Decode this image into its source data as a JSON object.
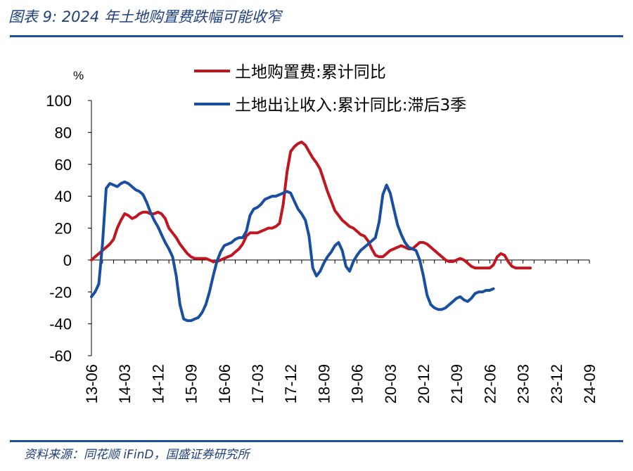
{
  "header": {
    "title": "图表 9:  2024 年土地购置费跌幅可能收窄"
  },
  "footer": {
    "source": "资料来源：同花顺 iFinD，国盛证券研究所"
  },
  "chart_data": {
    "type": "line",
    "ylabel": "%",
    "ylim": [
      -60,
      100
    ],
    "yticks": [
      100,
      80,
      60,
      40,
      20,
      0,
      -20,
      -40,
      -60
    ],
    "xticks": [
      "13-06",
      "14-03",
      "14-12",
      "15-09",
      "16-06",
      "17-03",
      "17-12",
      "18-09",
      "19-06",
      "20-03",
      "20-12",
      "21-09",
      "22-06",
      "23-03",
      "23-12",
      "24-09"
    ],
    "x_start": "2013-06",
    "legend_position": "top-right",
    "grid": false,
    "colors": {
      "land_purchase": "#c0161f",
      "land_revenue": "#1a4ea0",
      "rule": "#1f4e9c"
    },
    "series": [
      {
        "name": "土地购置费:累计同比",
        "color": "#c0161f",
        "points": [
          [
            "2013-06",
            0
          ],
          [
            "2013-07",
            2
          ],
          [
            "2013-08",
            4
          ],
          [
            "2013-09",
            6
          ],
          [
            "2013-10",
            8
          ],
          [
            "2013-11",
            10
          ],
          [
            "2013-12",
            13
          ],
          [
            "2014-01",
            20
          ],
          [
            "2014-02",
            25
          ],
          [
            "2014-03",
            29
          ],
          [
            "2014-04",
            28
          ],
          [
            "2014-05",
            26
          ],
          [
            "2014-06",
            27
          ],
          [
            "2014-07",
            29
          ],
          [
            "2014-08",
            30
          ],
          [
            "2014-09",
            30
          ],
          [
            "2014-10",
            29
          ],
          [
            "2014-11",
            29
          ],
          [
            "2014-12",
            30
          ],
          [
            "2015-01",
            29
          ],
          [
            "2015-02",
            26
          ],
          [
            "2015-03",
            20
          ],
          [
            "2015-04",
            17
          ],
          [
            "2015-05",
            14
          ],
          [
            "2015-06",
            10
          ],
          [
            "2015-07",
            7
          ],
          [
            "2015-08",
            4
          ],
          [
            "2015-09",
            2
          ],
          [
            "2015-10",
            1
          ],
          [
            "2015-11",
            1
          ],
          [
            "2015-12",
            1
          ],
          [
            "2016-01",
            1
          ],
          [
            "2016-02",
            0
          ],
          [
            "2016-03",
            -1
          ],
          [
            "2016-04",
            -1
          ],
          [
            "2016-05",
            0
          ],
          [
            "2016-06",
            1
          ],
          [
            "2016-07",
            2
          ],
          [
            "2016-08",
            3
          ],
          [
            "2016-09",
            5
          ],
          [
            "2016-10",
            7
          ],
          [
            "2016-11",
            10
          ],
          [
            "2016-12",
            15
          ],
          [
            "2017-01",
            17
          ],
          [
            "2017-02",
            17
          ],
          [
            "2017-03",
            17
          ],
          [
            "2017-04",
            18
          ],
          [
            "2017-05",
            19
          ],
          [
            "2017-06",
            20
          ],
          [
            "2017-07",
            20
          ],
          [
            "2017-08",
            21
          ],
          [
            "2017-09",
            23
          ],
          [
            "2017-10",
            35
          ],
          [
            "2017-11",
            55
          ],
          [
            "2017-12",
            68
          ],
          [
            "2018-01",
            71
          ],
          [
            "2018-02",
            73
          ],
          [
            "2018-03",
            74
          ],
          [
            "2018-04",
            72
          ],
          [
            "2018-05",
            68
          ],
          [
            "2018-06",
            64
          ],
          [
            "2018-07",
            61
          ],
          [
            "2018-08",
            57
          ],
          [
            "2018-09",
            50
          ],
          [
            "2018-10",
            43
          ],
          [
            "2018-11",
            37
          ],
          [
            "2018-12",
            31
          ],
          [
            "2019-01",
            28
          ],
          [
            "2019-02",
            25
          ],
          [
            "2019-03",
            23
          ],
          [
            "2019-04",
            21
          ],
          [
            "2019-05",
            20
          ],
          [
            "2019-06",
            18
          ],
          [
            "2019-07",
            16
          ],
          [
            "2019-08",
            15
          ],
          [
            "2019-09",
            12
          ],
          [
            "2019-10",
            7
          ],
          [
            "2019-11",
            3
          ],
          [
            "2019-12",
            2
          ],
          [
            "2020-01",
            2
          ],
          [
            "2020-02",
            4
          ],
          [
            "2020-03",
            6
          ],
          [
            "2020-04",
            7
          ],
          [
            "2020-05",
            8
          ],
          [
            "2020-06",
            9
          ],
          [
            "2020-07",
            8
          ],
          [
            "2020-08",
            7
          ],
          [
            "2020-09",
            7
          ],
          [
            "2020-10",
            9
          ],
          [
            "2020-11",
            11
          ],
          [
            "2020-12",
            11
          ],
          [
            "2021-01",
            10
          ],
          [
            "2021-02",
            8
          ],
          [
            "2021-03",
            6
          ],
          [
            "2021-04",
            4
          ],
          [
            "2021-05",
            2
          ],
          [
            "2021-06",
            0
          ],
          [
            "2021-07",
            -1
          ],
          [
            "2021-08",
            -1
          ],
          [
            "2021-09",
            0
          ],
          [
            "2021-10",
            1
          ],
          [
            "2021-11",
            0
          ],
          [
            "2021-12",
            -2
          ],
          [
            "2022-01",
            -4
          ],
          [
            "2022-02",
            -5
          ],
          [
            "2022-03",
            -5
          ],
          [
            "2022-04",
            -5
          ],
          [
            "2022-05",
            -5
          ],
          [
            "2022-06",
            -5
          ],
          [
            "2022-07",
            -3
          ],
          [
            "2022-08",
            2
          ],
          [
            "2022-09",
            4
          ],
          [
            "2022-10",
            3
          ],
          [
            "2022-11",
            -1
          ],
          [
            "2022-12",
            -4
          ],
          [
            "2023-01",
            -5
          ],
          [
            "2023-02",
            -5
          ],
          [
            "2023-03",
            -5
          ],
          [
            "2023-04",
            -5
          ],
          [
            "2023-05",
            -5
          ]
        ]
      },
      {
        "name": "土地出让收入:累计同比:滞后3季",
        "color": "#1a4ea0",
        "points": [
          [
            "2013-06",
            -23
          ],
          [
            "2013-07",
            -20
          ],
          [
            "2013-08",
            -15
          ],
          [
            "2013-09",
            10
          ],
          [
            "2013-10",
            45
          ],
          [
            "2013-11",
            48
          ],
          [
            "2013-12",
            47
          ],
          [
            "2014-01",
            46
          ],
          [
            "2014-02",
            48
          ],
          [
            "2014-03",
            49
          ],
          [
            "2014-04",
            48
          ],
          [
            "2014-05",
            46
          ],
          [
            "2014-06",
            44
          ],
          [
            "2014-07",
            43
          ],
          [
            "2014-08",
            41
          ],
          [
            "2014-09",
            36
          ],
          [
            "2014-10",
            30
          ],
          [
            "2014-11",
            25
          ],
          [
            "2014-12",
            21
          ],
          [
            "2015-01",
            16
          ],
          [
            "2015-02",
            11
          ],
          [
            "2015-03",
            7
          ],
          [
            "2015-04",
            2
          ],
          [
            "2015-05",
            -10
          ],
          [
            "2015-06",
            -28
          ],
          [
            "2015-07",
            -37
          ],
          [
            "2015-08",
            -38
          ],
          [
            "2015-09",
            -38
          ],
          [
            "2015-10",
            -37
          ],
          [
            "2015-11",
            -36
          ],
          [
            "2015-12",
            -33
          ],
          [
            "2016-01",
            -28
          ],
          [
            "2016-02",
            -20
          ],
          [
            "2016-03",
            -10
          ],
          [
            "2016-04",
            -1
          ],
          [
            "2016-05",
            5
          ],
          [
            "2016-06",
            9
          ],
          [
            "2016-07",
            10
          ],
          [
            "2016-08",
            11
          ],
          [
            "2016-09",
            13
          ],
          [
            "2016-10",
            14
          ],
          [
            "2016-11",
            14
          ],
          [
            "2016-12",
            18
          ],
          [
            "2017-01",
            28
          ],
          [
            "2017-02",
            32
          ],
          [
            "2017-03",
            33
          ],
          [
            "2017-04",
            35
          ],
          [
            "2017-05",
            38
          ],
          [
            "2017-06",
            39
          ],
          [
            "2017-07",
            40
          ],
          [
            "2017-08",
            40
          ],
          [
            "2017-09",
            41
          ],
          [
            "2017-10",
            42
          ],
          [
            "2017-11",
            43
          ],
          [
            "2017-12",
            42
          ],
          [
            "2018-01",
            37
          ],
          [
            "2018-02",
            32
          ],
          [
            "2018-03",
            29
          ],
          [
            "2018-04",
            25
          ],
          [
            "2018-05",
            15
          ],
          [
            "2018-06",
            -5
          ],
          [
            "2018-07",
            -10
          ],
          [
            "2018-08",
            -7
          ],
          [
            "2018-09",
            -2
          ],
          [
            "2018-10",
            2
          ],
          [
            "2018-11",
            5
          ],
          [
            "2018-12",
            9
          ],
          [
            "2019-01",
            11
          ],
          [
            "2019-02",
            6
          ],
          [
            "2019-03",
            -4
          ],
          [
            "2019-04",
            -7
          ],
          [
            "2019-05",
            -1
          ],
          [
            "2019-06",
            3
          ],
          [
            "2019-07",
            6
          ],
          [
            "2019-08",
            8
          ],
          [
            "2019-09",
            10
          ],
          [
            "2019-10",
            12
          ],
          [
            "2019-11",
            14
          ],
          [
            "2019-12",
            24
          ],
          [
            "2020-01",
            41
          ],
          [
            "2020-02",
            47
          ],
          [
            "2020-03",
            42
          ],
          [
            "2020-04",
            32
          ],
          [
            "2020-05",
            22
          ],
          [
            "2020-06",
            16
          ],
          [
            "2020-07",
            11
          ],
          [
            "2020-08",
            8
          ],
          [
            "2020-09",
            7
          ],
          [
            "2020-10",
            6
          ],
          [
            "2020-11",
            0
          ],
          [
            "2020-12",
            -10
          ],
          [
            "2021-01",
            -22
          ],
          [
            "2021-02",
            -28
          ],
          [
            "2021-03",
            -30
          ],
          [
            "2021-04",
            -31
          ],
          [
            "2021-05",
            -31
          ],
          [
            "2021-06",
            -30
          ],
          [
            "2021-07",
            -28
          ],
          [
            "2021-08",
            -26
          ],
          [
            "2021-09",
            -24
          ],
          [
            "2021-10",
            -23
          ],
          [
            "2021-11",
            -25
          ],
          [
            "2021-12",
            -26
          ],
          [
            "2022-01",
            -24
          ],
          [
            "2022-02",
            -21
          ],
          [
            "2022-03",
            -20
          ],
          [
            "2022-04",
            -20
          ],
          [
            "2022-05",
            -19
          ],
          [
            "2022-06",
            -19
          ],
          [
            "2022-07",
            -18
          ]
        ]
      }
    ]
  }
}
